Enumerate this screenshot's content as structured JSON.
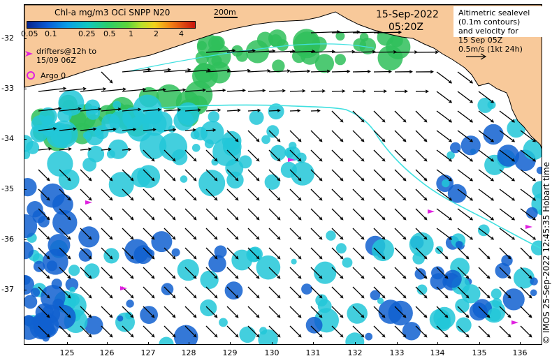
{
  "colorbar": {
    "title": "Chl-a mg/m3 OCi SNPP N20",
    "tick_labels": [
      "0.05",
      "0.1",
      "0.25",
      "0.5",
      "1",
      "2",
      "4"
    ]
  },
  "scale": {
    "label": "200m"
  },
  "date_label": "15-Sep-2022",
  "time_label": "05:20Z",
  "legend": {
    "text": "Altimetric sealevel\n(0.1m contours)\nand velocity for\n15 Sep 05Z\n0.5m/s (1kt 24h)"
  },
  "drifters_label": "drifters@12h to\n15/09 06Z",
  "argo_label": "Argo 0",
  "credit": "© IMOS 25-Sep-2022 12:45:35 Hobart time",
  "x_ticks": [
    "125",
    "126",
    "127",
    "128",
    "129",
    "130",
    "131",
    "132",
    "133",
    "134",
    "135",
    "136"
  ],
  "y_ticks": [
    "-32",
    "-33",
    "-34",
    "-35",
    "-36",
    "-37"
  ],
  "colors": {
    "land": "#f8c99a",
    "contour": "#40e0e0",
    "drifter": "#e020e0",
    "chl_high": "#2fc05a",
    "chl_mid": "#22c7d8",
    "chl_low": "#1060d0"
  }
}
